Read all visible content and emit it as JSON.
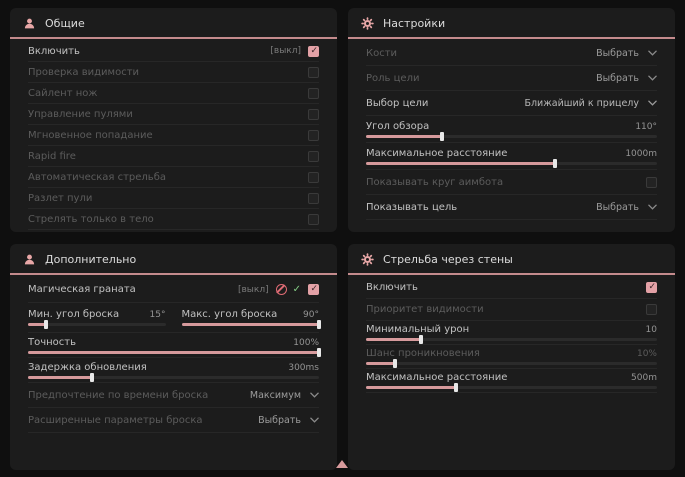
{
  "colors": {
    "accent_pink": "#d69a9c",
    "checkbox_checked": "#e3a1a6",
    "header_underline": "#c48b8d",
    "panel_bg": "#1c1c1c",
    "page_bg": "#0f0f0f",
    "blocked_icon_red": "#df6b74",
    "allowed_icon_green": "#84cd85"
  },
  "icons": {
    "person-icon": "person silhouette (pink)",
    "gear-icon": "gear/cog (pink)",
    "chevron-down-icon": "⌄",
    "checkbox-check": "✓",
    "blocked-icon": "⊘",
    "allowed-check-icon": "✓",
    "scroll-up-indicator": "▲"
  },
  "panels": {
    "general": {
      "title": "Общие",
      "icon": "person-icon",
      "rows": [
        {
          "label": "Включить",
          "state_text": "[выкл]",
          "checked": true
        },
        {
          "label": "Проверка видимости",
          "checked": false
        },
        {
          "label": "Сайлент нож",
          "checked": false
        },
        {
          "label": "Управление пулями",
          "checked": false
        },
        {
          "label": "Мгновенное попадание",
          "checked": false
        },
        {
          "label": "Rapid fire",
          "checked": false
        },
        {
          "label": "Автоматическая стрельба",
          "checked": false
        },
        {
          "label": "Разлет пули",
          "checked": false
        },
        {
          "label": "Стрелять только в тело",
          "checked": false
        }
      ]
    },
    "settings": {
      "title": "Настройки",
      "icon": "gear-icon",
      "rows": [
        {
          "label": "Кости",
          "type": "dropdown",
          "value": "Выбрать"
        },
        {
          "label": "Роль цели",
          "type": "dropdown",
          "value": "Выбрать"
        },
        {
          "label": "Выбор цели",
          "type": "dropdown",
          "value": "Ближайший к прицелу"
        },
        {
          "label": "Угол обзора",
          "type": "slider",
          "value": "110°",
          "fill": 26
        },
        {
          "label": "Максимальное расстояние",
          "type": "slider",
          "value": "1000m",
          "fill": 65
        },
        {
          "label": "Показывать круг аимбота",
          "type": "checkbox",
          "checked": false
        },
        {
          "label": "Показывать цель",
          "type": "dropdown",
          "value": "Выбрать"
        }
      ]
    },
    "additional": {
      "title": "Дополнительно",
      "icon": "person-icon",
      "rows": [
        {
          "label": "Магическая граната",
          "state_text": "[выкл]",
          "checked": true
        },
        {
          "label": "Мин. угол броска",
          "type": "slider",
          "value": "15°",
          "fill": 13
        },
        {
          "label": "Макс. угол броска",
          "type": "slider",
          "value": "90°",
          "fill": 100
        },
        {
          "label": "Точность",
          "type": "slider",
          "value": "100%",
          "fill": 100
        },
        {
          "label": "Задержка обновления",
          "type": "slider",
          "value": "300ms",
          "fill": 22
        },
        {
          "label": "Предпочтение по времени броска",
          "type": "dropdown",
          "value": "Максимум"
        },
        {
          "label": "Расширенные параметры броска",
          "type": "dropdown",
          "value": "Выбрать"
        }
      ]
    },
    "walls": {
      "title": "Стрельба через стены",
      "icon": "gear-icon",
      "rows": [
        {
          "label": "Включить",
          "checked": true
        },
        {
          "label": "Приоритет видимости",
          "checked": false
        },
        {
          "label": "Минимальный урон",
          "type": "slider",
          "value": "10",
          "fill": 19
        },
        {
          "label": "Шанс проникновения",
          "type": "slider",
          "value": "10%",
          "fill": 10
        },
        {
          "label": "Максимальное расстояние",
          "type": "slider",
          "value": "500m",
          "fill": 31
        }
      ]
    }
  }
}
